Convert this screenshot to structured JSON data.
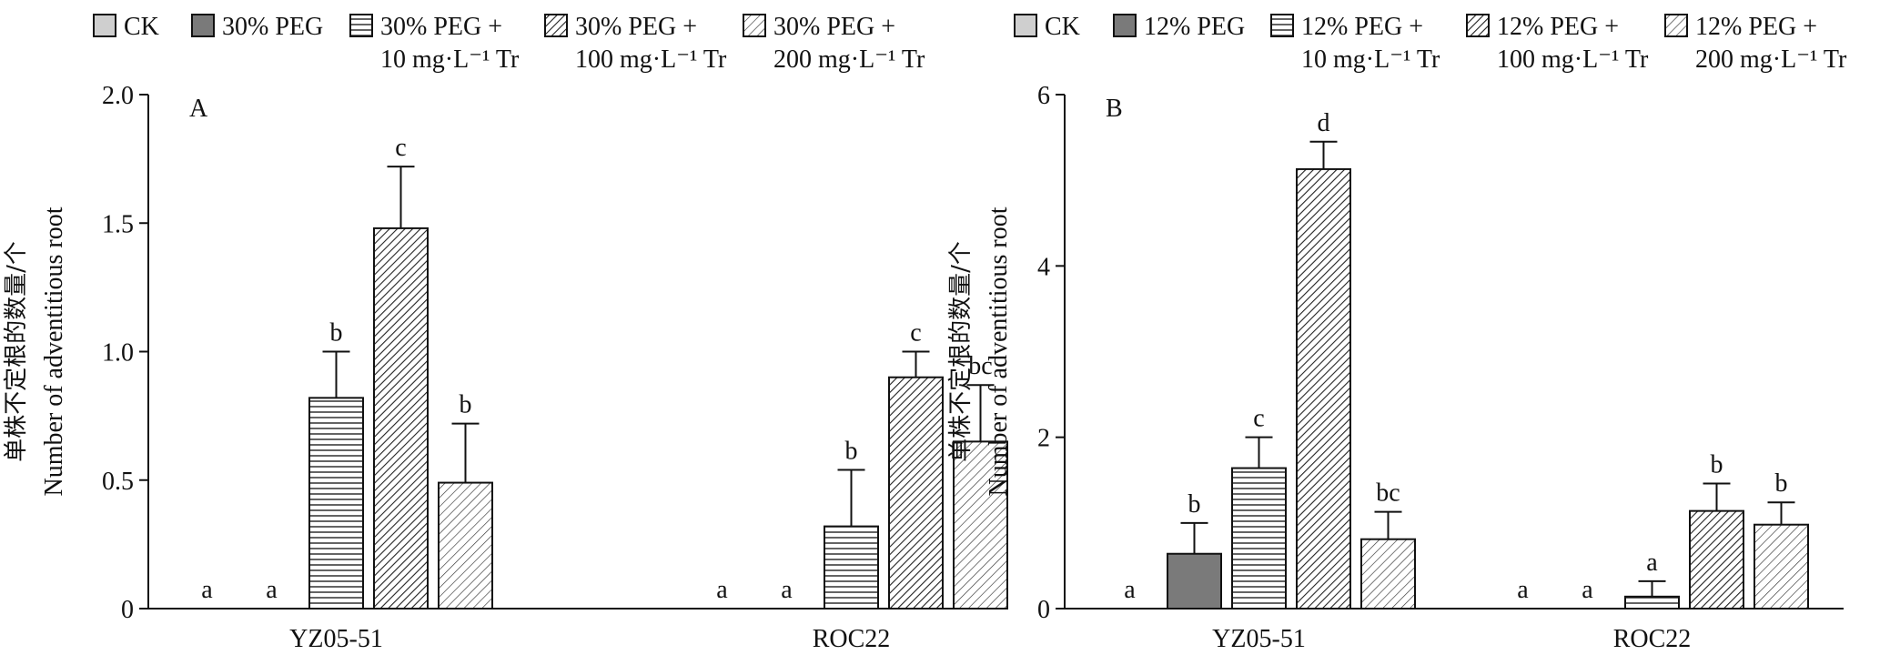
{
  "chart_data": [
    {
      "type": "bar",
      "panel_label": "A",
      "ylabel_cn": "单株不定根的数量/个",
      "ylabel_en": "Number of adventitious root",
      "ylim": [
        0,
        2.0
      ],
      "yticks": [
        "0",
        "0.5",
        "1.0",
        "1.5",
        "2.0"
      ],
      "ytick_values": [
        0,
        0.5,
        1.0,
        1.5,
        2.0
      ],
      "categories": [
        "YZ05-51",
        "ROC22"
      ],
      "legend_position": "top",
      "series": [
        {
          "name": "CK",
          "legend_line2": "",
          "pattern": "light",
          "values": [
            0,
            0
          ],
          "errors": [
            0,
            0
          ],
          "letters": [
            "a",
            "a"
          ]
        },
        {
          "name": "30% PEG",
          "legend_line2": "",
          "pattern": "dark",
          "values": [
            0,
            0
          ],
          "errors": [
            0,
            0
          ],
          "letters": [
            "a",
            "a"
          ]
        },
        {
          "name": "30% PEG +",
          "legend_line2": "10 mg·L⁻¹ Tr",
          "pattern": "horizontal",
          "values": [
            0.82,
            0.32
          ],
          "errors": [
            0.18,
            0.22
          ],
          "letters": [
            "b",
            "b"
          ]
        },
        {
          "name": "30% PEG +",
          "legend_line2": "100 mg·L⁻¹ Tr",
          "pattern": "diag-dense",
          "values": [
            1.48,
            0.9
          ],
          "errors": [
            0.24,
            0.1
          ],
          "letters": [
            "c",
            "c"
          ]
        },
        {
          "name": "30% PEG +",
          "legend_line2": "200 mg·L⁻¹ Tr",
          "pattern": "diag-sparse",
          "values": [
            0.49,
            0.65
          ],
          "errors": [
            0.23,
            0.22
          ],
          "letters": [
            "b",
            "bc"
          ]
        }
      ]
    },
    {
      "type": "bar",
      "panel_label": "B",
      "ylabel_cn": "单株不定根的数量/个",
      "ylabel_en": "Number of adventitious root",
      "ylim": [
        0,
        6
      ],
      "yticks": [
        "0",
        "2",
        "4",
        "6"
      ],
      "ytick_values": [
        0,
        2,
        4,
        6
      ],
      "categories": [
        "YZ05-51",
        "ROC22"
      ],
      "legend_position": "top",
      "series": [
        {
          "name": "CK",
          "legend_line2": "",
          "pattern": "light",
          "values": [
            0,
            0
          ],
          "errors": [
            0,
            0
          ],
          "letters": [
            "a",
            "a"
          ]
        },
        {
          "name": "12% PEG",
          "legend_line2": "",
          "pattern": "dark",
          "values": [
            0.64,
            0
          ],
          "errors": [
            0.36,
            0
          ],
          "letters": [
            "b",
            "a"
          ]
        },
        {
          "name": "12% PEG +",
          "legend_line2": "10 mg·L⁻¹ Tr",
          "pattern": "horizontal",
          "values": [
            1.64,
            0.14
          ],
          "errors": [
            0.36,
            0.18
          ],
          "letters": [
            "c",
            "a"
          ]
        },
        {
          "name": "12% PEG +",
          "legend_line2": "100 mg·L⁻¹ Tr",
          "pattern": "diag-dense",
          "values": [
            5.13,
            1.14
          ],
          "errors": [
            0.32,
            0.32
          ],
          "letters": [
            "d",
            "b"
          ]
        },
        {
          "name": "12% PEG +",
          "legend_line2": "200 mg·L⁻¹ Tr",
          "pattern": "diag-sparse",
          "values": [
            0.81,
            0.98
          ],
          "errors": [
            0.32,
            0.26
          ],
          "letters": [
            "bc",
            "b"
          ]
        }
      ]
    }
  ]
}
